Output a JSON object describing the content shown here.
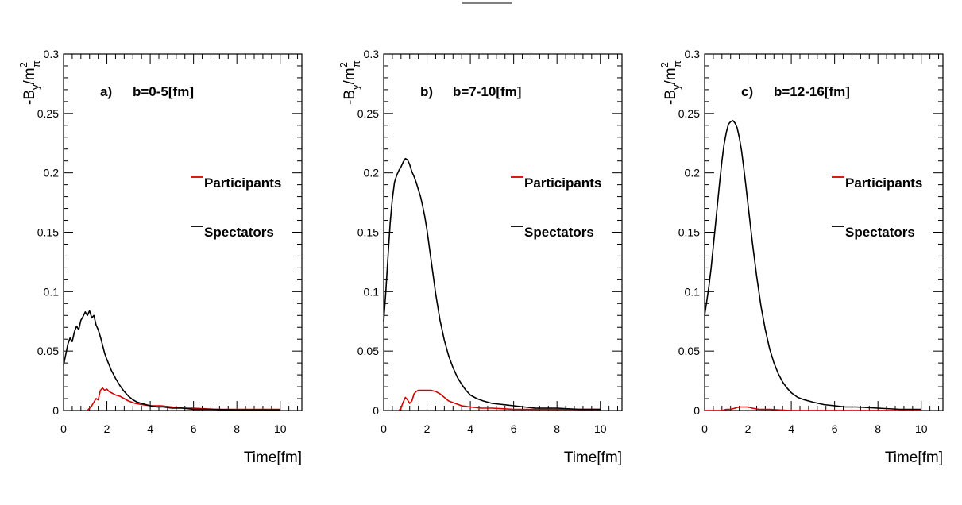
{
  "chart_data": [
    {
      "type": "line",
      "panel_label": "a)",
      "title": "b=0-5[fm]",
      "xlabel": "Time[fm]",
      "ylabel": {
        "main": "-B",
        "sub_y": "y",
        "slash": "/m",
        "sup": "2",
        "sub_pi": "π"
      },
      "xlim": [
        0,
        11
      ],
      "ylim": [
        0,
        0.3
      ],
      "xticks": [
        "0",
        "2",
        "4",
        "6",
        "8",
        "10"
      ],
      "yticks": [
        "0",
        "0.05",
        "0.1",
        "0.15",
        "0.2",
        "0.25",
        "0.3"
      ],
      "grid": false,
      "legend_position": "right",
      "series": [
        {
          "name": "Participants",
          "color": "#d40000",
          "x": [
            1.1,
            1.3,
            1.4,
            1.5,
            1.6,
            1.7,
            1.8,
            1.9,
            2.0,
            2.1,
            2.2,
            2.4,
            2.6,
            2.8,
            3.0,
            3.3,
            3.6,
            4.0,
            4.5,
            5.0,
            5.5,
            6.0,
            7.0,
            8.0,
            9.0,
            10.0
          ],
          "y": [
            0.0,
            0.004,
            0.007,
            0.01,
            0.009,
            0.017,
            0.019,
            0.017,
            0.018,
            0.016,
            0.015,
            0.013,
            0.012,
            0.01,
            0.008,
            0.006,
            0.005,
            0.004,
            0.004,
            0.003,
            0.002,
            0.002,
            0.001,
            0.001,
            0.001,
            0.001
          ]
        },
        {
          "name": "Spectators",
          "color": "#000000",
          "x": [
            0.0,
            0.1,
            0.2,
            0.3,
            0.4,
            0.5,
            0.6,
            0.7,
            0.8,
            0.9,
            1.0,
            1.1,
            1.2,
            1.3,
            1.4,
            1.5,
            1.6,
            1.7,
            1.8,
            1.9,
            2.0,
            2.2,
            2.4,
            2.6,
            2.8,
            3.0,
            3.2,
            3.4,
            3.6,
            3.8,
            4.0,
            4.3,
            4.6,
            5.0,
            5.5,
            6.0,
            6.5,
            7.0,
            8.0,
            9.0,
            10.0
          ],
          "y": [
            0.038,
            0.047,
            0.056,
            0.061,
            0.058,
            0.066,
            0.071,
            0.068,
            0.076,
            0.079,
            0.083,
            0.08,
            0.084,
            0.078,
            0.08,
            0.072,
            0.068,
            0.062,
            0.055,
            0.048,
            0.043,
            0.034,
            0.027,
            0.021,
            0.016,
            0.012,
            0.009,
            0.007,
            0.006,
            0.005,
            0.004,
            0.003,
            0.003,
            0.002,
            0.002,
            0.001,
            0.001,
            0.001,
            0.0005,
            0.0005,
            0.0005
          ]
        }
      ]
    },
    {
      "type": "line",
      "panel_label": "b)",
      "title": "b=7-10[fm]",
      "xlabel": "Time[fm]",
      "ylabel": {
        "main": "-B",
        "sub_y": "y",
        "slash": "/m",
        "sup": "2",
        "sub_pi": "π"
      },
      "xlim": [
        0,
        11
      ],
      "ylim": [
        0,
        0.3
      ],
      "xticks": [
        "0",
        "2",
        "4",
        "6",
        "8",
        "10"
      ],
      "yticks": [
        "0",
        "0.05",
        "0.1",
        "0.15",
        "0.2",
        "0.25",
        "0.3"
      ],
      "grid": false,
      "legend_position": "right",
      "series": [
        {
          "name": "Participants",
          "color": "#d40000",
          "x": [
            0.7,
            0.8,
            0.9,
            1.0,
            1.1,
            1.2,
            1.3,
            1.4,
            1.5,
            1.6,
            1.8,
            2.0,
            2.2,
            2.4,
            2.6,
            2.8,
            3.0,
            3.3,
            3.6,
            4.0,
            4.5,
            5.0,
            6.0,
            7.0,
            8.0,
            9.0,
            10.0
          ],
          "y": [
            0.0,
            0.002,
            0.007,
            0.011,
            0.009,
            0.006,
            0.008,
            0.014,
            0.016,
            0.017,
            0.017,
            0.017,
            0.017,
            0.016,
            0.014,
            0.011,
            0.008,
            0.006,
            0.004,
            0.003,
            0.002,
            0.002,
            0.001,
            0.001,
            0.001,
            0.001,
            0.001
          ]
        },
        {
          "name": "Spectators",
          "color": "#000000",
          "x": [
            0.0,
            0.1,
            0.2,
            0.3,
            0.4,
            0.5,
            0.6,
            0.7,
            0.8,
            0.9,
            1.0,
            1.1,
            1.2,
            1.3,
            1.4,
            1.5,
            1.6,
            1.7,
            1.8,
            1.9,
            2.0,
            2.2,
            2.4,
            2.6,
            2.8,
            3.0,
            3.2,
            3.4,
            3.6,
            3.8,
            4.0,
            4.3,
            4.6,
            5.0,
            5.5,
            6.0,
            6.5,
            7.0,
            8.0,
            9.0,
            10.0
          ],
          "y": [
            0.075,
            0.1,
            0.13,
            0.158,
            0.178,
            0.192,
            0.198,
            0.202,
            0.205,
            0.209,
            0.212,
            0.211,
            0.207,
            0.201,
            0.197,
            0.192,
            0.186,
            0.18,
            0.172,
            0.163,
            0.152,
            0.125,
            0.098,
            0.076,
            0.059,
            0.046,
            0.036,
            0.028,
            0.022,
            0.017,
            0.013,
            0.01,
            0.008,
            0.006,
            0.005,
            0.004,
            0.003,
            0.002,
            0.002,
            0.001,
            0.001
          ]
        }
      ]
    },
    {
      "type": "line",
      "panel_label": "c)",
      "title": "b=12-16[fm]",
      "xlabel": "Time[fm]",
      "ylabel": {
        "main": "-B",
        "sub_y": "y",
        "slash": "/m",
        "sup": "2",
        "sub_pi": "π"
      },
      "xlim": [
        0,
        11
      ],
      "ylim": [
        0,
        0.3
      ],
      "xticks": [
        "0",
        "2",
        "4",
        "6",
        "8",
        "10"
      ],
      "yticks": [
        "0",
        "0.05",
        "0.1",
        "0.15",
        "0.2",
        "0.25",
        "0.3"
      ],
      "grid": false,
      "legend_position": "right",
      "series": [
        {
          "name": "Participants",
          "color": "#d40000",
          "x": [
            0.0,
            0.8,
            1.0,
            1.2,
            1.4,
            1.6,
            1.8,
            2.0,
            2.2,
            2.5,
            3.0,
            4.0,
            6.0,
            8.0,
            10.0
          ],
          "y": [
            0.0,
            0.0,
            0.001,
            0.001,
            0.002,
            0.003,
            0.003,
            0.003,
            0.002,
            0.001,
            0.001,
            0.0,
            0.0,
            0.0,
            0.0
          ]
        },
        {
          "name": "Spectators",
          "color": "#000000",
          "x": [
            0.0,
            0.1,
            0.2,
            0.3,
            0.4,
            0.5,
            0.6,
            0.7,
            0.8,
            0.9,
            1.0,
            1.1,
            1.2,
            1.3,
            1.4,
            1.5,
            1.6,
            1.7,
            1.8,
            1.9,
            2.0,
            2.2,
            2.4,
            2.6,
            2.8,
            3.0,
            3.2,
            3.4,
            3.6,
            3.8,
            4.0,
            4.3,
            4.6,
            5.0,
            5.5,
            6.0,
            6.5,
            7.0,
            8.0,
            9.0,
            10.0
          ],
          "y": [
            0.08,
            0.092,
            0.105,
            0.12,
            0.138,
            0.156,
            0.175,
            0.193,
            0.21,
            0.224,
            0.234,
            0.241,
            0.243,
            0.244,
            0.242,
            0.238,
            0.23,
            0.219,
            0.205,
            0.19,
            0.174,
            0.142,
            0.113,
            0.088,
            0.068,
            0.052,
            0.04,
            0.031,
            0.024,
            0.019,
            0.015,
            0.011,
            0.009,
            0.007,
            0.005,
            0.004,
            0.003,
            0.003,
            0.002,
            0.001,
            0.001
          ]
        }
      ]
    }
  ]
}
